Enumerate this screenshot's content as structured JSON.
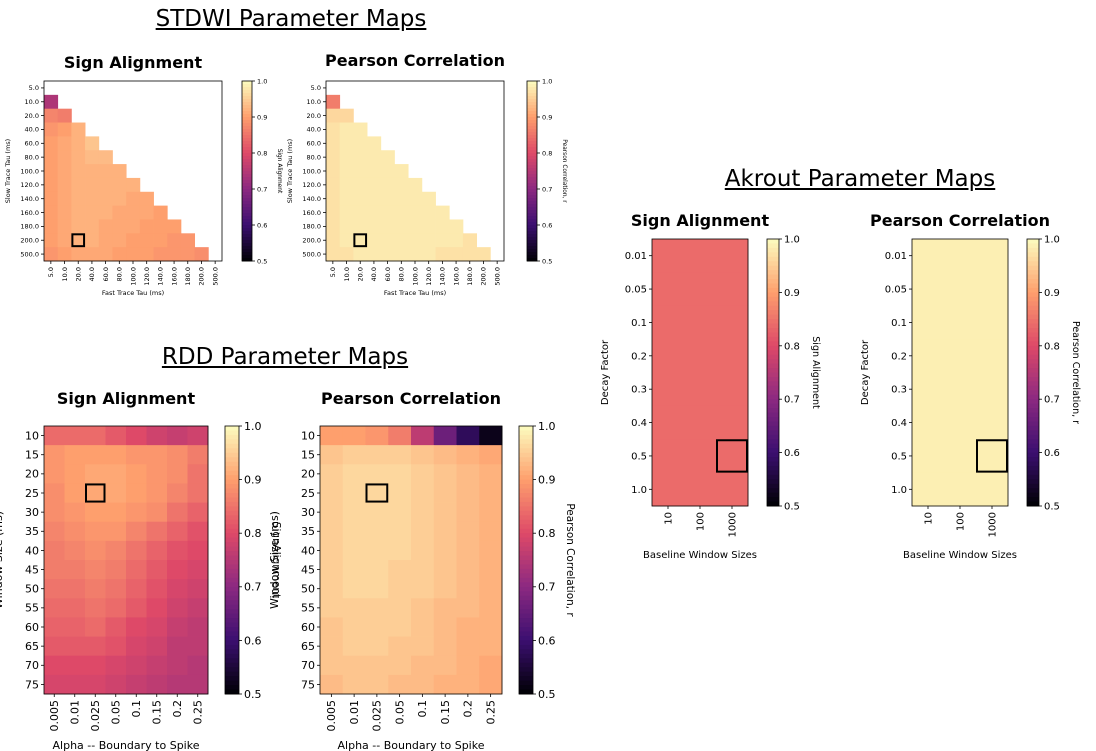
{
  "sections": {
    "stdwi": "STDWI Parameter Maps",
    "rdd": "RDD Parameter Maps",
    "akrout": "Akrout Parameter Maps"
  },
  "colormap": [
    "#000004",
    "#3b0f70",
    "#8c2981",
    "#de4968",
    "#fe9f6d",
    "#fcfdbf"
  ],
  "chart_data": [
    {
      "type": "heatmap",
      "group": "stdwi",
      "title": "Sign Alignment",
      "xlabel": "Fast Trace Tau (ms)",
      "ylabel": "Slow Trace Tau (ms)",
      "colorbar_label": "Sign Alignment",
      "clim": [
        0.5,
        1.0
      ],
      "colorbar_ticks": [
        "0.5",
        "0.6",
        "0.7",
        "0.8",
        "0.9",
        "1.0"
      ],
      "x": [
        "5.0",
        "10.0",
        "20.0",
        "40.0",
        "60.0",
        "80.0",
        "100.0",
        "120.0",
        "140.0",
        "160.0",
        "180.0",
        "200.0",
        "500.0"
      ],
      "y": [
        "5.0",
        "10.0",
        "20.0",
        "40.0",
        "60.0",
        "80.0",
        "100.0",
        "120.0",
        "140.0",
        "160.0",
        "180.0",
        "200.0",
        "500.0"
      ],
      "mask": "lower-triangle",
      "selected": {
        "x": "20.0",
        "y": "200.0"
      },
      "values": [
        [
          null,
          null,
          null,
          null,
          null,
          null,
          null,
          null,
          null,
          null,
          null,
          null,
          null
        ],
        [
          0.74,
          null,
          null,
          null,
          null,
          null,
          null,
          null,
          null,
          null,
          null,
          null,
          null
        ],
        [
          0.87,
          0.86,
          null,
          null,
          null,
          null,
          null,
          null,
          null,
          null,
          null,
          null,
          null
        ],
        [
          0.89,
          0.9,
          0.92,
          null,
          null,
          null,
          null,
          null,
          null,
          null,
          null,
          null,
          null
        ],
        [
          0.9,
          0.91,
          0.92,
          0.94,
          null,
          null,
          null,
          null,
          null,
          null,
          null,
          null,
          null
        ],
        [
          0.9,
          0.91,
          0.92,
          0.93,
          0.93,
          null,
          null,
          null,
          null,
          null,
          null,
          null,
          null
        ],
        [
          0.9,
          0.91,
          0.92,
          0.92,
          0.92,
          0.92,
          null,
          null,
          null,
          null,
          null,
          null,
          null
        ],
        [
          0.9,
          0.91,
          0.92,
          0.92,
          0.92,
          0.92,
          0.92,
          null,
          null,
          null,
          null,
          null,
          null
        ],
        [
          0.9,
          0.91,
          0.92,
          0.92,
          0.92,
          0.92,
          0.91,
          0.91,
          null,
          null,
          null,
          null,
          null
        ],
        [
          0.9,
          0.91,
          0.92,
          0.92,
          0.92,
          0.91,
          0.91,
          0.91,
          0.9,
          null,
          null,
          null,
          null
        ],
        [
          0.9,
          0.91,
          0.92,
          0.92,
          0.91,
          0.91,
          0.91,
          0.9,
          0.9,
          0.9,
          null,
          null,
          null
        ],
        [
          0.9,
          0.91,
          0.92,
          0.92,
          0.91,
          0.91,
          0.9,
          0.9,
          0.9,
          0.89,
          0.89,
          null,
          null
        ],
        [
          0.89,
          0.9,
          0.91,
          0.91,
          0.91,
          0.9,
          0.9,
          0.9,
          0.89,
          0.89,
          0.89,
          0.88,
          null
        ]
      ]
    },
    {
      "type": "heatmap",
      "group": "stdwi",
      "title": "Pearson Correlation",
      "xlabel": "Fast Trace Tau (ms)",
      "ylabel": "Slow Trace Tau (ms)",
      "colorbar_label": "Pearson Correlation, r",
      "clim": [
        0.5,
        1.0
      ],
      "colorbar_ticks": [
        "0.5",
        "0.6",
        "0.7",
        "0.8",
        "0.9",
        "1.0"
      ],
      "x": [
        "5.0",
        "10.0",
        "20.0",
        "40.0",
        "60.0",
        "80.0",
        "100.0",
        "120.0",
        "140.0",
        "160.0",
        "180.0",
        "200.0",
        "500.0"
      ],
      "y": [
        "5.0",
        "10.0",
        "20.0",
        "40.0",
        "60.0",
        "80.0",
        "100.0",
        "120.0",
        "140.0",
        "160.0",
        "180.0",
        "200.0",
        "500.0"
      ],
      "mask": "lower-triangle",
      "selected": {
        "x": "20.0",
        "y": "200.0"
      },
      "values": [
        [
          null,
          null,
          null,
          null,
          null,
          null,
          null,
          null,
          null,
          null,
          null,
          null,
          null
        ],
        [
          0.86,
          null,
          null,
          null,
          null,
          null,
          null,
          null,
          null,
          null,
          null,
          null,
          null
        ],
        [
          0.96,
          0.96,
          null,
          null,
          null,
          null,
          null,
          null,
          null,
          null,
          null,
          null,
          null
        ],
        [
          0.97,
          0.98,
          0.98,
          null,
          null,
          null,
          null,
          null,
          null,
          null,
          null,
          null,
          null
        ],
        [
          0.97,
          0.98,
          0.98,
          0.98,
          null,
          null,
          null,
          null,
          null,
          null,
          null,
          null,
          null
        ],
        [
          0.97,
          0.98,
          0.98,
          0.98,
          0.98,
          null,
          null,
          null,
          null,
          null,
          null,
          null,
          null
        ],
        [
          0.97,
          0.98,
          0.98,
          0.98,
          0.98,
          0.98,
          null,
          null,
          null,
          null,
          null,
          null,
          null
        ],
        [
          0.97,
          0.98,
          0.98,
          0.98,
          0.98,
          0.98,
          0.98,
          null,
          null,
          null,
          null,
          null,
          null
        ],
        [
          0.97,
          0.98,
          0.98,
          0.98,
          0.98,
          0.98,
          0.98,
          0.98,
          null,
          null,
          null,
          null,
          null
        ],
        [
          0.97,
          0.98,
          0.98,
          0.98,
          0.98,
          0.98,
          0.98,
          0.98,
          0.98,
          null,
          null,
          null,
          null
        ],
        [
          0.97,
          0.98,
          0.98,
          0.98,
          0.98,
          0.98,
          0.98,
          0.98,
          0.98,
          0.98,
          null,
          null,
          null
        ],
        [
          0.97,
          0.98,
          0.98,
          0.98,
          0.98,
          0.98,
          0.98,
          0.98,
          0.98,
          0.98,
          0.97,
          null,
          null
        ],
        [
          0.97,
          0.97,
          0.98,
          0.98,
          0.98,
          0.98,
          0.98,
          0.98,
          0.97,
          0.97,
          0.97,
          0.97,
          null
        ]
      ]
    },
    {
      "type": "heatmap",
      "group": "rdd",
      "title": "Sign Alignment",
      "xlabel": "Alpha -- Boundary to Spike",
      "ylabel": "Window Size (ms)",
      "colorbar_label": "SignAlignment",
      "clim": [
        0.5,
        1.0
      ],
      "colorbar_ticks": [
        "0.5",
        "0.6",
        "0.7",
        "0.8",
        "0.9",
        "1.0"
      ],
      "x": [
        "0.005",
        "0.01",
        "0.025",
        "0.05",
        "0.1",
        "0.15",
        "0.2",
        "0.25"
      ],
      "y": [
        "10",
        "15",
        "20",
        "25",
        "30",
        "35",
        "40",
        "45",
        "50",
        "55",
        "60",
        "65",
        "70",
        "75"
      ],
      "selected": {
        "x": "0.025",
        "y": "25"
      },
      "values": [
        [
          0.84,
          0.84,
          0.84,
          0.82,
          0.8,
          0.78,
          0.77,
          0.78
        ],
        [
          0.89,
          0.9,
          0.9,
          0.9,
          0.89,
          0.89,
          0.88,
          0.86
        ],
        [
          0.89,
          0.9,
          0.91,
          0.91,
          0.9,
          0.89,
          0.88,
          0.85
        ],
        [
          0.88,
          0.9,
          0.91,
          0.91,
          0.9,
          0.89,
          0.87,
          0.85
        ],
        [
          0.88,
          0.89,
          0.9,
          0.9,
          0.89,
          0.88,
          0.85,
          0.83
        ],
        [
          0.87,
          0.88,
          0.89,
          0.89,
          0.87,
          0.85,
          0.83,
          0.81
        ],
        [
          0.86,
          0.87,
          0.88,
          0.87,
          0.85,
          0.83,
          0.81,
          0.8
        ],
        [
          0.86,
          0.86,
          0.87,
          0.86,
          0.84,
          0.82,
          0.8,
          0.79
        ],
        [
          0.85,
          0.85,
          0.86,
          0.85,
          0.83,
          0.81,
          0.79,
          0.78
        ],
        [
          0.84,
          0.84,
          0.85,
          0.84,
          0.82,
          0.8,
          0.78,
          0.77
        ],
        [
          0.83,
          0.83,
          0.84,
          0.82,
          0.8,
          0.79,
          0.77,
          0.76
        ],
        [
          0.82,
          0.82,
          0.82,
          0.81,
          0.79,
          0.78,
          0.76,
          0.76
        ],
        [
          0.8,
          0.8,
          0.8,
          0.79,
          0.78,
          0.77,
          0.76,
          0.75
        ],
        [
          0.79,
          0.79,
          0.79,
          0.78,
          0.77,
          0.76,
          0.75,
          0.75
        ]
      ]
    },
    {
      "type": "heatmap",
      "group": "rdd",
      "title": "Pearson Correlation",
      "xlabel": "Alpha -- Boundary to Spike",
      "ylabel": "Window Size (ms)",
      "colorbar_label": "Pearson Correlation, r",
      "clim": [
        0.5,
        1.0
      ],
      "colorbar_ticks": [
        "0.5",
        "0.6",
        "0.7",
        "0.8",
        "0.9",
        "1.0"
      ],
      "x": [
        "0.005",
        "0.01",
        "0.025",
        "0.05",
        "0.1",
        "0.15",
        "0.2",
        "0.25"
      ],
      "y": [
        "10",
        "15",
        "20",
        "25",
        "30",
        "35",
        "40",
        "45",
        "50",
        "55",
        "60",
        "65",
        "70",
        "75"
      ],
      "selected": {
        "x": "0.025",
        "y": "25"
      },
      "values": [
        [
          0.9,
          0.9,
          0.89,
          0.86,
          0.76,
          0.66,
          0.58,
          0.52
        ],
        [
          0.94,
          0.95,
          0.95,
          0.95,
          0.94,
          0.93,
          0.92,
          0.91
        ],
        [
          0.95,
          0.96,
          0.96,
          0.96,
          0.95,
          0.94,
          0.93,
          0.92
        ],
        [
          0.95,
          0.96,
          0.96,
          0.96,
          0.95,
          0.94,
          0.93,
          0.92
        ],
        [
          0.95,
          0.96,
          0.96,
          0.96,
          0.95,
          0.94,
          0.93,
          0.92
        ],
        [
          0.95,
          0.96,
          0.96,
          0.96,
          0.95,
          0.94,
          0.93,
          0.92
        ],
        [
          0.95,
          0.96,
          0.96,
          0.96,
          0.95,
          0.94,
          0.93,
          0.92
        ],
        [
          0.95,
          0.96,
          0.96,
          0.95,
          0.95,
          0.94,
          0.93,
          0.92
        ],
        [
          0.95,
          0.96,
          0.96,
          0.95,
          0.95,
          0.94,
          0.93,
          0.92
        ],
        [
          0.95,
          0.95,
          0.95,
          0.95,
          0.94,
          0.93,
          0.93,
          0.92
        ],
        [
          0.94,
          0.95,
          0.95,
          0.95,
          0.94,
          0.93,
          0.92,
          0.92
        ],
        [
          0.94,
          0.95,
          0.95,
          0.94,
          0.94,
          0.93,
          0.92,
          0.92
        ],
        [
          0.94,
          0.94,
          0.94,
          0.94,
          0.93,
          0.93,
          0.92,
          0.91
        ],
        [
          0.93,
          0.94,
          0.94,
          0.93,
          0.93,
          0.92,
          0.92,
          0.91
        ]
      ]
    },
    {
      "type": "heatmap",
      "group": "akrout",
      "title": "Sign Alignment",
      "xlabel": "Baseline Window Sizes",
      "ylabel": "Decay Factor",
      "colorbar_label": "Sign Alignment",
      "clim": [
        0.5,
        1.0
      ],
      "colorbar_ticks": [
        "0.5",
        "0.6",
        "0.7",
        "0.8",
        "0.9",
        "1.0"
      ],
      "x": [
        "10",
        "100",
        "1000"
      ],
      "y": [
        "0.01",
        "0.05",
        "0.1",
        "0.2",
        "0.3",
        "0.4",
        "0.5",
        "1.0"
      ],
      "selected": {
        "x": "1000",
        "y": "0.5"
      },
      "values": [
        [
          0.84,
          0.84,
          0.84
        ],
        [
          0.84,
          0.84,
          0.84
        ],
        [
          0.84,
          0.84,
          0.84
        ],
        [
          0.84,
          0.84,
          0.84
        ],
        [
          0.84,
          0.84,
          0.84
        ],
        [
          0.84,
          0.84,
          0.84
        ],
        [
          0.84,
          0.84,
          0.84
        ],
        [
          0.84,
          0.84,
          0.84
        ]
      ]
    },
    {
      "type": "heatmap",
      "group": "akrout",
      "title": "Pearson Correlation",
      "xlabel": "Baseline Window Sizes",
      "ylabel": "Decay Factor",
      "colorbar_label": "Pearson Correlation, r",
      "clim": [
        0.5,
        1.0
      ],
      "colorbar_ticks": [
        "0.5",
        "0.6",
        "0.7",
        "0.8",
        "0.9",
        "1.0"
      ],
      "x": [
        "10",
        "100",
        "1000"
      ],
      "y": [
        "0.01",
        "0.05",
        "0.1",
        "0.2",
        "0.3",
        "0.4",
        "0.5",
        "1.0"
      ],
      "selected": {
        "x": "1000",
        "y": "0.5"
      },
      "values": [
        [
          0.985,
          0.985,
          0.985
        ],
        [
          0.985,
          0.985,
          0.985
        ],
        [
          0.985,
          0.985,
          0.985
        ],
        [
          0.985,
          0.985,
          0.985
        ],
        [
          0.985,
          0.985,
          0.985
        ],
        [
          0.985,
          0.985,
          0.985
        ],
        [
          0.985,
          0.985,
          0.985
        ],
        [
          0.985,
          0.985,
          0.985
        ]
      ]
    }
  ]
}
